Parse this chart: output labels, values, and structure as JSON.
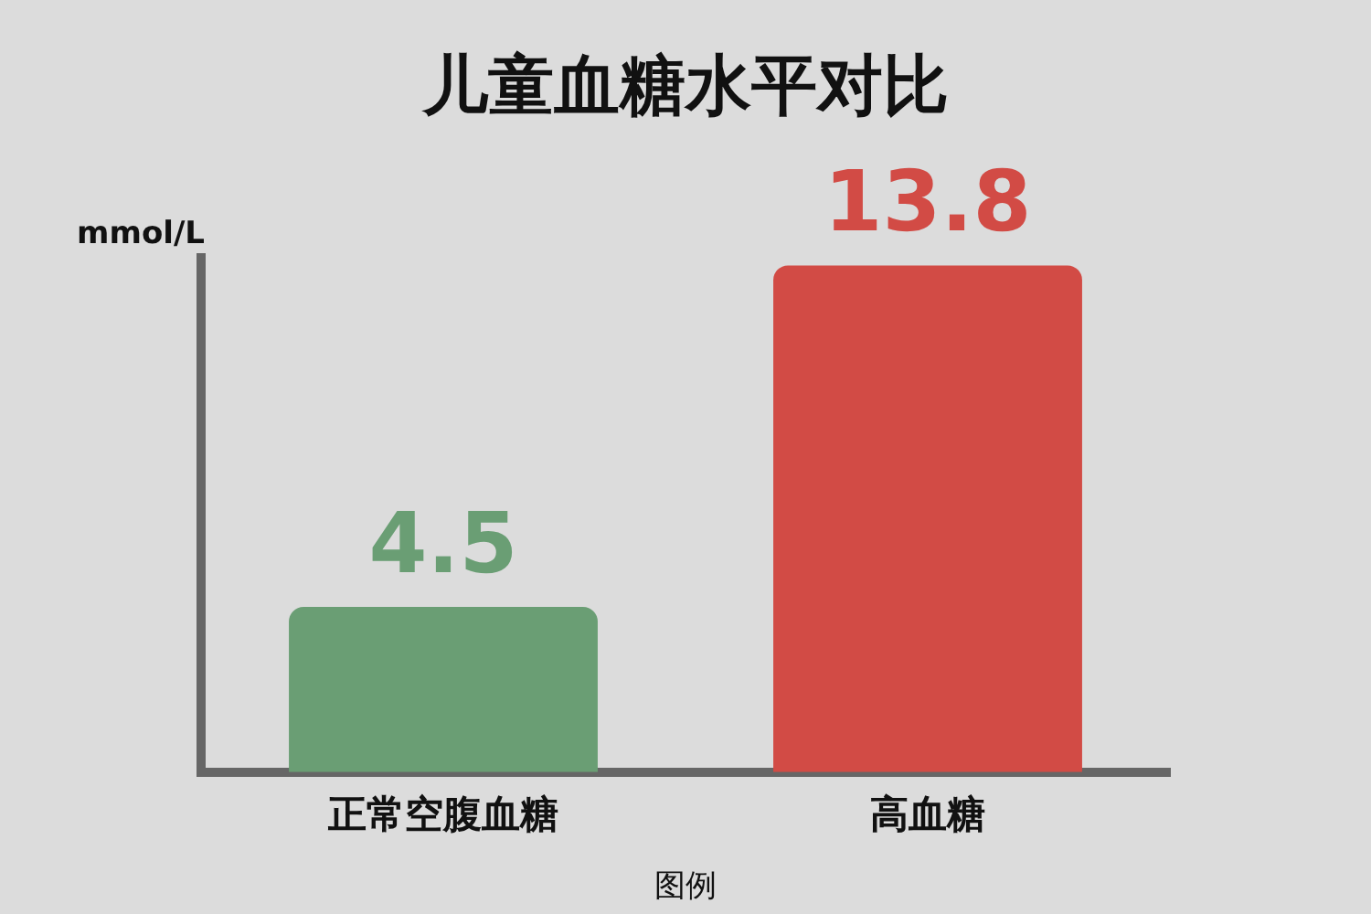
{
  "chart_data": {
    "type": "bar",
    "title": "儿童血糖水平对比",
    "ylabel": "mmol/L",
    "xlabel": "图例",
    "categories": [
      "正常空腹血糖",
      "高血糖"
    ],
    "values": [
      4.5,
      13.8
    ],
    "colors": [
      "#6a9e74",
      "#d24b45"
    ],
    "data_labels": true,
    "grid": false,
    "legend": false
  }
}
